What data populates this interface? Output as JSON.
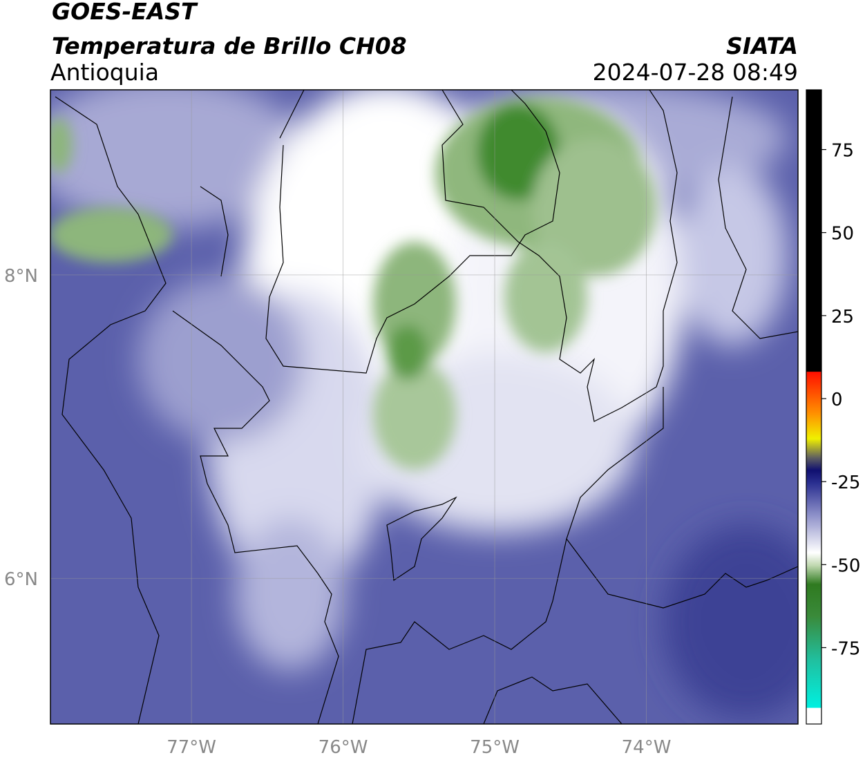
{
  "header": {
    "title": "GOES-EAST",
    "subtitle": "Temperatura de Brillo CH08",
    "region": "Antioquia",
    "source": "SIATA",
    "datetime": "2024-07-28 08:49"
  },
  "map": {
    "lonlim": [
      -77.93,
      -73.0
    ],
    "latlim": [
      5.04,
      9.22
    ],
    "lonticks": [
      {
        "value": -77,
        "label": "77°W"
      },
      {
        "value": -76,
        "label": "76°W"
      },
      {
        "value": -75,
        "label": "75°W"
      },
      {
        "value": -74,
        "label": "74°W"
      }
    ],
    "latticks": [
      {
        "value": 8,
        "label": "8°N"
      },
      {
        "value": 6,
        "label": "6°N"
      }
    ]
  },
  "colorbar": {
    "lim": [
      -98,
      93
    ],
    "ticks": [
      75,
      50,
      25,
      0,
      -25,
      -50,
      -75
    ]
  }
}
